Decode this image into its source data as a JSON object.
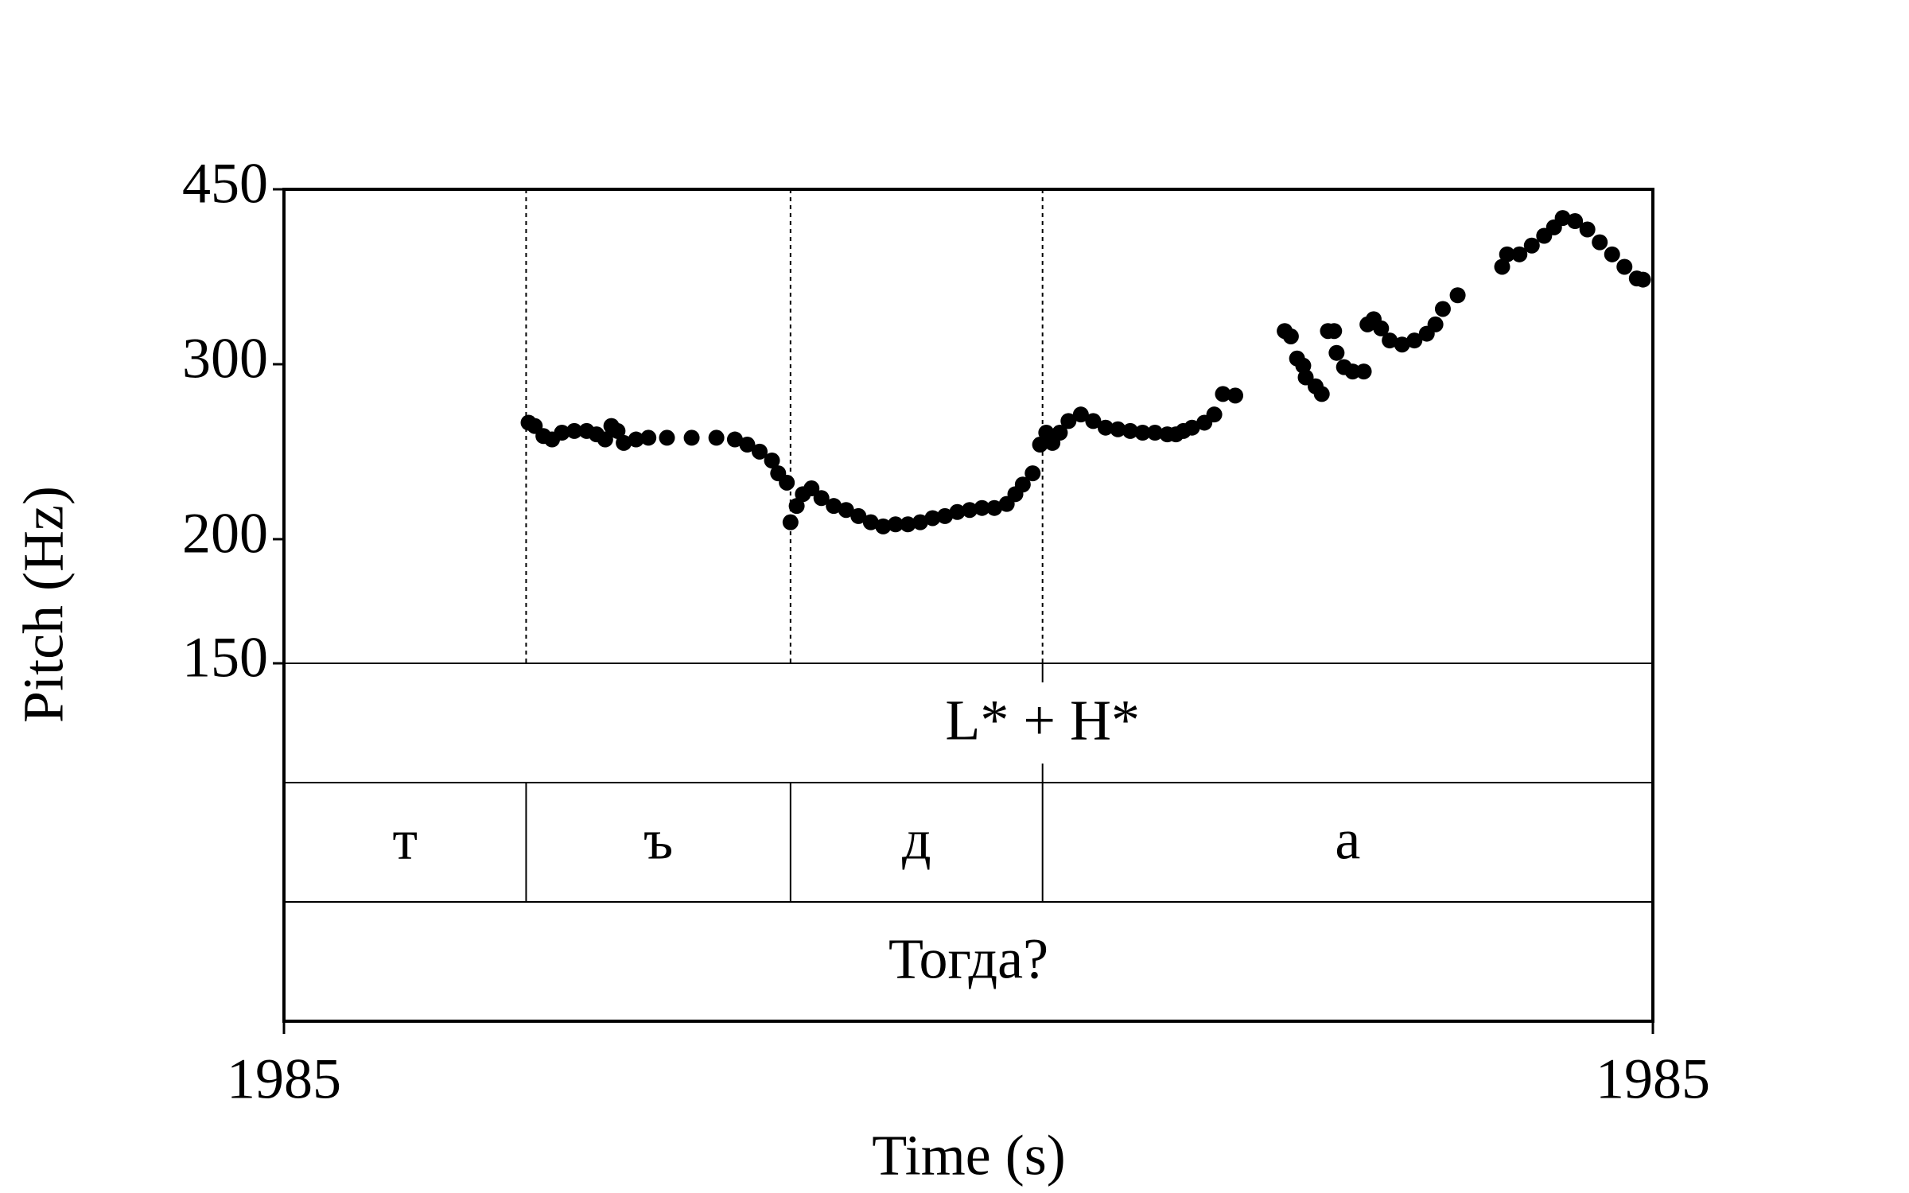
{
  "chart_data": {
    "type": "scatter",
    "y_label": "Pitch (Hz)",
    "x_label": "Time (s)",
    "yscale": "log",
    "ylim": [
      150,
      450
    ],
    "yticks": [
      150,
      200,
      300,
      450
    ],
    "xlim": [
      1985,
      1985.554
    ],
    "xticks": [
      1985,
      {
        "value": 1985.554,
        "label": "1985"
      }
    ],
    "series": [
      {
        "color": "#000000",
        "x": [
          1985.099,
          1985.1015,
          1985.105,
          1985.1085,
          1985.1125,
          1985.1175,
          1985.1225,
          1985.1265,
          1985.13,
          1985.1325,
          1985.135,
          1985.1375,
          1985.1425,
          1985.1475,
          1985.155,
          1985.165,
          1985.175,
          1985.1825,
          1985.1875,
          1985.1925,
          1985.1975,
          1985.2,
          1985.2035,
          1985.205,
          1985.2075,
          1985.21,
          1985.2135,
          1985.2175,
          1985.2225,
          1985.2275,
          1985.2325,
          1985.2375,
          1985.2425,
          1985.2475,
          1985.2525,
          1985.2575,
          1985.2625,
          1985.2675,
          1985.2725,
          1985.2775,
          1985.2825,
          1985.2875,
          1985.2925,
          1985.296,
          1985.299,
          1985.303,
          1985.306,
          1985.3085,
          1985.311,
          1985.314,
          1985.3175,
          1985.3225,
          1985.3275,
          1985.3325,
          1985.3375,
          1985.3425,
          1985.3475,
          1985.3525,
          1985.3575,
          1985.361,
          1985.364,
          1985.3675,
          1985.3725,
          1985.3765,
          1985.38,
          1985.385,
          1985.405,
          1985.4075,
          1985.41,
          1985.4125,
          1985.4135,
          1985.4175,
          1985.42,
          1985.4225,
          1985.425,
          1985.426,
          1985.429,
          1985.4325,
          1985.437,
          1985.4385,
          1985.441,
          1985.444,
          1985.4475,
          1985.4525,
          1985.4575,
          1985.4625,
          1985.466,
          1985.469,
          1985.475,
          1985.493,
          1985.495,
          1985.5,
          1985.505,
          1985.51,
          1985.514,
          1985.5175,
          1985.5225,
          1985.5275,
          1985.5325,
          1985.5375,
          1985.5425,
          1985.5475,
          1985.55
        ],
        "values": [
          262,
          260,
          254,
          252,
          256,
          257,
          257,
          255,
          252,
          260,
          257,
          250,
          252,
          253,
          253,
          253,
          253,
          252,
          249,
          245,
          240,
          233,
          228,
          208,
          216,
          222,
          225,
          220,
          216,
          214,
          211,
          208,
          206,
          207,
          207,
          208,
          210,
          211,
          213,
          214,
          215,
          215,
          217,
          222,
          227,
          233,
          249,
          256,
          250,
          256,
          263,
          267,
          263,
          259,
          258,
          257,
          256,
          256,
          255,
          255,
          257,
          259,
          262,
          267,
          280,
          279,
          324,
          320,
          304,
          299,
          291,
          285,
          280,
          324,
          324,
          308,
          298,
          295,
          295,
          329,
          333,
          326,
          317,
          314,
          317,
          322,
          329,
          341,
          352,
          376,
          387,
          387,
          395,
          404,
          412,
          421,
          418,
          410,
          398,
          387,
          376,
          366,
          365
        ]
      }
    ],
    "tiers": [
      {
        "points": [
          {
            "time": 1985.307,
            "label": "L* + H*"
          }
        ]
      },
      {
        "boundaries": [
          1985.098,
          1985.205,
          1985.307
        ],
        "labels": [
          "т",
          "ъ",
          "д",
          "а"
        ]
      },
      {
        "boundaries": [],
        "labels": [
          "Тогда?"
        ]
      }
    ]
  }
}
